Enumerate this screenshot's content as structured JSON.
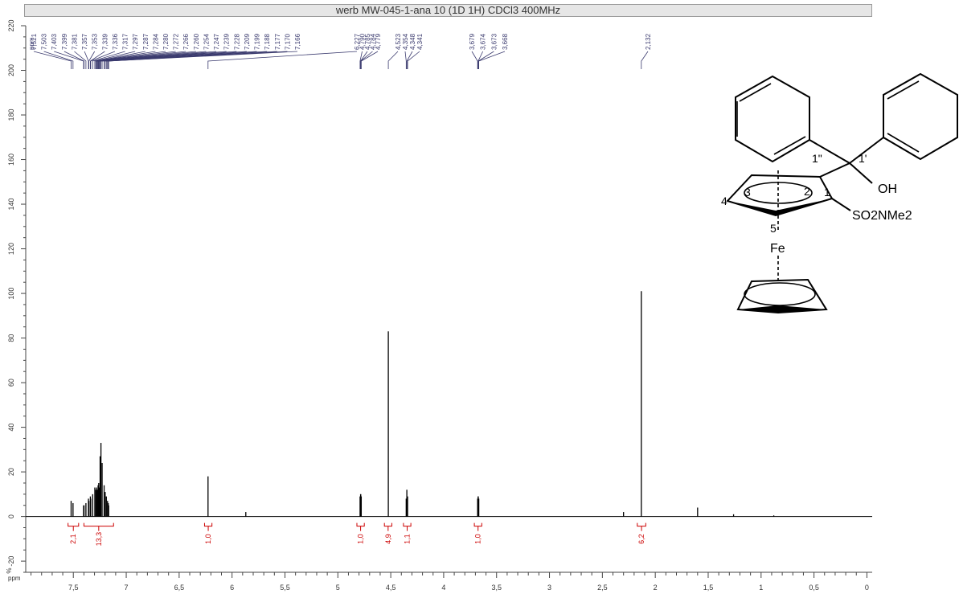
{
  "title": "werb MW-045-1-ana 10 (1D 1H) CDCl3 400MHz",
  "chart_data": {
    "type": "line",
    "title": "werb MW-045-1-ana 10 (1D 1H) CDCl3 400MHz",
    "xlabel": "ppm",
    "ylabel": "%",
    "xlim": [
      7.95,
      -0.05
    ],
    "ylim": [
      -25,
      220
    ],
    "x_reversed": true,
    "x_ticks": [
      "7,5",
      "7",
      "6,5",
      "6",
      "5,5",
      "5",
      "4,5",
      "4",
      "3,5",
      "3",
      "2,5",
      "2",
      "1,5",
      "1",
      "0,5",
      "0"
    ],
    "x_tick_values": [
      7.5,
      7,
      6.5,
      6,
      5.5,
      5,
      4.5,
      4,
      3.5,
      3,
      2.5,
      2,
      1.5,
      1,
      0.5,
      0
    ],
    "y_ticks": [
      "220",
      "200",
      "180",
      "160",
      "140",
      "120",
      "100",
      "80",
      "60",
      "40",
      "20",
      "0",
      "-20"
    ],
    "y_tick_values": [
      220,
      200,
      180,
      160,
      140,
      120,
      100,
      80,
      60,
      40,
      20,
      0,
      -20
    ],
    "series": [
      {
        "x": [
          7.521,
          7.503,
          7.403,
          7.399,
          7.381,
          7.357,
          7.353,
          7.339,
          7.336,
          7.317,
          7.297,
          7.287,
          7.284,
          7.28,
          7.272,
          7.266,
          7.26,
          7.254,
          7.247,
          7.239,
          7.228,
          7.209,
          7.199,
          7.188,
          7.177,
          7.17,
          7.166,
          6.227,
          5.87,
          4.79,
          4.785,
          4.784,
          4.779,
          4.523,
          4.354,
          4.348,
          4.341,
          3.679,
          3.674,
          3.673,
          3.668,
          2.3,
          2.132,
          1.6,
          1.26,
          0.88
        ],
        "y": [
          7,
          6,
          5,
          5,
          6,
          8,
          7,
          9,
          8,
          10,
          13,
          12,
          11,
          13,
          12,
          14,
          15,
          13,
          27,
          33,
          24,
          14,
          11,
          9,
          7,
          6,
          5,
          18,
          2,
          9,
          10,
          10,
          9,
          83,
          8,
          12,
          9,
          8,
          9,
          9,
          8,
          2,
          101,
          4,
          1,
          0.5
        ]
      }
    ],
    "peak_labels": [
      "ppm",
      "7,521",
      "7,503",
      "7,403",
      "7,399",
      "7,381",
      "7,357",
      "7,353",
      "7,339",
      "7,336",
      "7,317",
      "7,297",
      "7,287",
      "7,284",
      "7,280",
      "7,272",
      "7,266",
      "7,260",
      "7,254",
      "7,247",
      "7,239",
      "7,228",
      "7,209",
      "7,199",
      "7,188",
      "7,177",
      "7,170",
      "7,166",
      "6,227",
      "4,790",
      "4,785",
      "4,784",
      "4,779",
      "4,523",
      "4,354",
      "4,348",
      "4,341",
      "3,679",
      "3,674",
      "3,673",
      "3,668",
      "2,132"
    ],
    "integrals": [
      {
        "from": 7.55,
        "to": 7.45,
        "label": "2,1"
      },
      {
        "from": 7.4,
        "to": 7.12,
        "label": "13,3"
      },
      {
        "from": 6.26,
        "to": 6.19,
        "label": "1,0"
      },
      {
        "from": 4.82,
        "to": 4.75,
        "label": "1,0"
      },
      {
        "from": 4.56,
        "to": 4.49,
        "label": "4,9"
      },
      {
        "from": 4.38,
        "to": 4.31,
        "label": "1,1"
      },
      {
        "from": 3.71,
        "to": 3.64,
        "label": "1,0"
      },
      {
        "from": 2.17,
        "to": 2.09,
        "label": "6,2"
      }
    ],
    "colors": {
      "spectrum": "#000000",
      "integral": "#cc0000",
      "peak_label": "#3a3a6e",
      "axis": "#444444"
    }
  },
  "structure": {
    "labels": [
      "1\"",
      "1'",
      "3",
      "2",
      "OH",
      "4",
      "1",
      "SO2NMe2",
      "5",
      "Fe"
    ]
  }
}
